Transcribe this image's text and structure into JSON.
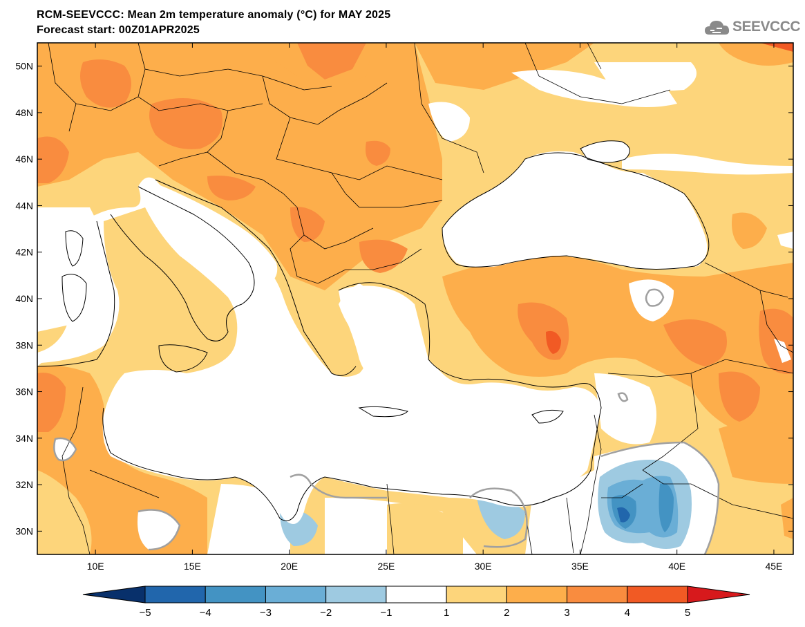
{
  "header": {
    "title": "RCM-SEEVCCC: Mean 2m temperature anomaly (°C) for MAY 2025",
    "subtitle": "Forecast start: 00Z01APR2025",
    "logo_text": "SEEVCCC",
    "logo_icon": "cloud-icon"
  },
  "map": {
    "projection": "lat-lon",
    "lon_range": [
      7,
      46
    ],
    "lat_range": [
      29,
      51
    ],
    "lat_ticks": [
      {
        "value": 30,
        "label": "30N"
      },
      {
        "value": 32,
        "label": "32N"
      },
      {
        "value": 34,
        "label": "34N"
      },
      {
        "value": 36,
        "label": "36N"
      },
      {
        "value": 38,
        "label": "38N"
      },
      {
        "value": 40,
        "label": "40N"
      },
      {
        "value": 42,
        "label": "42N"
      },
      {
        "value": 44,
        "label": "44N"
      },
      {
        "value": 46,
        "label": "46N"
      },
      {
        "value": 48,
        "label": "48N"
      },
      {
        "value": 50,
        "label": "50N"
      }
    ],
    "lon_ticks": [
      {
        "value": 10,
        "label": "10E"
      },
      {
        "value": 15,
        "label": "15E"
      },
      {
        "value": 20,
        "label": "20E"
      },
      {
        "value": 25,
        "label": "25E"
      },
      {
        "value": 30,
        "label": "30E"
      },
      {
        "value": 35,
        "label": "35E"
      },
      {
        "value": 40,
        "label": "40E"
      },
      {
        "value": 45,
        "label": "45E"
      }
    ]
  },
  "colorbar": {
    "levels": [
      "-5",
      "-4",
      "-3",
      "-2",
      "-1",
      "1",
      "2",
      "3",
      "4",
      "5"
    ],
    "colors": [
      "#08306b",
      "#2166ac",
      "#4393c3",
      "#6aaed6",
      "#9ecae1",
      "#ffffff",
      "#fdd57b",
      "#fdae4b",
      "#f98c3f",
      "#f15a24",
      "#d7191c"
    ]
  }
}
